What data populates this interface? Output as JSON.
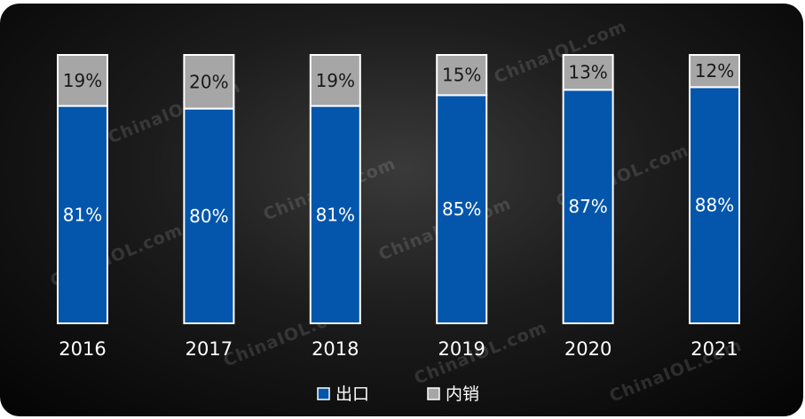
{
  "chart_data": {
    "type": "bar",
    "stacked": true,
    "percent": true,
    "categories": [
      "2016",
      "2017",
      "2018",
      "2019",
      "2020",
      "2021"
    ],
    "series": [
      {
        "name": "出口",
        "values": [
          81,
          80,
          81,
          85,
          87,
          88
        ],
        "labels": [
          "81%",
          "80%",
          "81%",
          "85%",
          "87%",
          "88%"
        ],
        "color": "#0356AB"
      },
      {
        "name": "内销",
        "values": [
          19,
          20,
          19,
          15,
          13,
          12
        ],
        "labels": [
          "19%",
          "20%",
          "19%",
          "15%",
          "13%",
          "12%"
        ],
        "color": "#A6A6A6"
      }
    ],
    "ylim": [
      0,
      100
    ],
    "legend": "bottom-center",
    "grid": false
  },
  "watermark": "ChinaIOL.com",
  "colors": {
    "background": "#111111",
    "bar_border": "#ffffff",
    "label_on_blue": "#ffffff",
    "label_on_gray": "#1a1a1a"
  }
}
